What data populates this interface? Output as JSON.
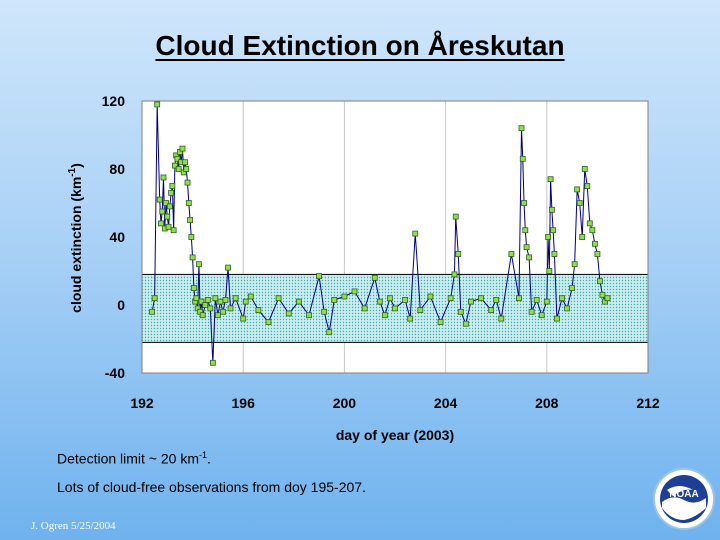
{
  "title": "Cloud Extinction on Åreskutan",
  "notes": {
    "detection_prefix": "Detection limit ~ 20 km",
    "detection_sup": "-1",
    "detection_suffix": ".",
    "cloud_free": "Lots of cloud-free observations from doy 195-207."
  },
  "credit": "J. Ogren  5/25/2004",
  "logo_text": "NOAA",
  "colors": {
    "marker_fill": "#8fe04a",
    "marker_stroke": "#2f5f1f",
    "line": "#000080",
    "band_fill": "#8fd2d6",
    "plot_bg": "#ffffff"
  },
  "chart_data": {
    "type": "scatter",
    "title": "Cloud Extinction on Åreskutan",
    "xlabel": "day of year (2003)",
    "ylabel_base": "cloud extinction (km",
    "ylabel_sup": "-1",
    "ylabel_end": ")",
    "xlim": [
      192,
      212
    ],
    "ylim": [
      -40,
      120
    ],
    "xticks": [
      192,
      196,
      200,
      204,
      208,
      212
    ],
    "yticks": [
      -40,
      0,
      40,
      80,
      120
    ],
    "grid": "vertical",
    "detection_band": [
      -22,
      18
    ],
    "series": [
      {
        "marker": "square",
        "x": [
          192.4,
          192.5,
          192.6,
          192.7,
          192.75,
          192.8,
          192.85,
          192.9,
          192.95,
          193.0,
          193.05,
          193.1,
          193.15,
          193.2,
          193.25,
          193.3,
          193.35,
          193.4,
          193.45,
          193.5,
          193.55,
          193.6,
          193.65,
          193.7,
          193.75,
          193.8,
          193.85,
          193.9,
          193.95,
          194.0,
          194.05,
          194.1,
          194.15,
          194.2,
          194.25,
          194.3,
          194.35,
          194.4,
          194.5,
          194.6,
          194.7,
          194.8,
          194.9,
          195.0,
          195.1,
          195.2,
          195.3,
          195.4,
          195.5,
          195.7,
          196.0,
          196.1,
          196.3,
          196.6,
          197.0,
          197.4,
          197.8,
          198.2,
          198.6,
          199.0,
          199.2,
          199.4,
          199.6,
          200.0,
          200.4,
          200.8,
          201.2,
          201.4,
          201.6,
          201.8,
          202.0,
          202.4,
          202.6,
          202.8,
          203.0,
          203.4,
          203.8,
          204.2,
          204.35,
          204.4,
          204.5,
          204.6,
          204.8,
          205.0,
          205.4,
          205.8,
          206.0,
          206.2,
          206.6,
          206.9,
          207.0,
          207.05,
          207.1,
          207.15,
          207.2,
          207.3,
          207.4,
          207.6,
          207.8,
          208.0,
          208.05,
          208.1,
          208.15,
          208.2,
          208.25,
          208.3,
          208.4,
          208.6,
          208.8,
          209.0,
          209.1,
          209.2,
          209.3,
          209.4,
          209.5,
          209.6,
          209.7,
          209.8,
          209.9,
          210.0,
          210.1,
          210.2,
          210.3,
          210.4
        ],
        "y": [
          -4,
          4,
          118,
          62,
          48,
          55,
          75,
          45,
          60,
          52,
          46,
          58,
          66,
          70,
          44,
          82,
          88,
          86,
          80,
          90,
          84,
          92,
          78,
          84,
          80,
          72,
          60,
          50,
          40,
          28,
          10,
          2,
          4,
          -2,
          24,
          -4,
          2,
          -6,
          0,
          3,
          -2,
          -34,
          4,
          -6,
          2,
          -4,
          3,
          22,
          -2,
          4,
          -8,
          2,
          5,
          -3,
          -10,
          4,
          -5,
          2,
          -6,
          17,
          -4,
          -16,
          3,
          5,
          8,
          -2,
          16,
          2,
          -6,
          4,
          -2,
          3,
          -8,
          42,
          -3,
          5,
          -10,
          4,
          18,
          52,
          30,
          -4,
          -11,
          2,
          4,
          -3,
          3,
          -8,
          30,
          4,
          104,
          86,
          60,
          44,
          34,
          28,
          -4,
          3,
          -6,
          2,
          40,
          20,
          74,
          56,
          44,
          30,
          -8,
          4,
          -2,
          10,
          24,
          68,
          60,
          40,
          80,
          70,
          48,
          44,
          36,
          30,
          14,
          6,
          2,
          4
        ]
      }
    ]
  }
}
